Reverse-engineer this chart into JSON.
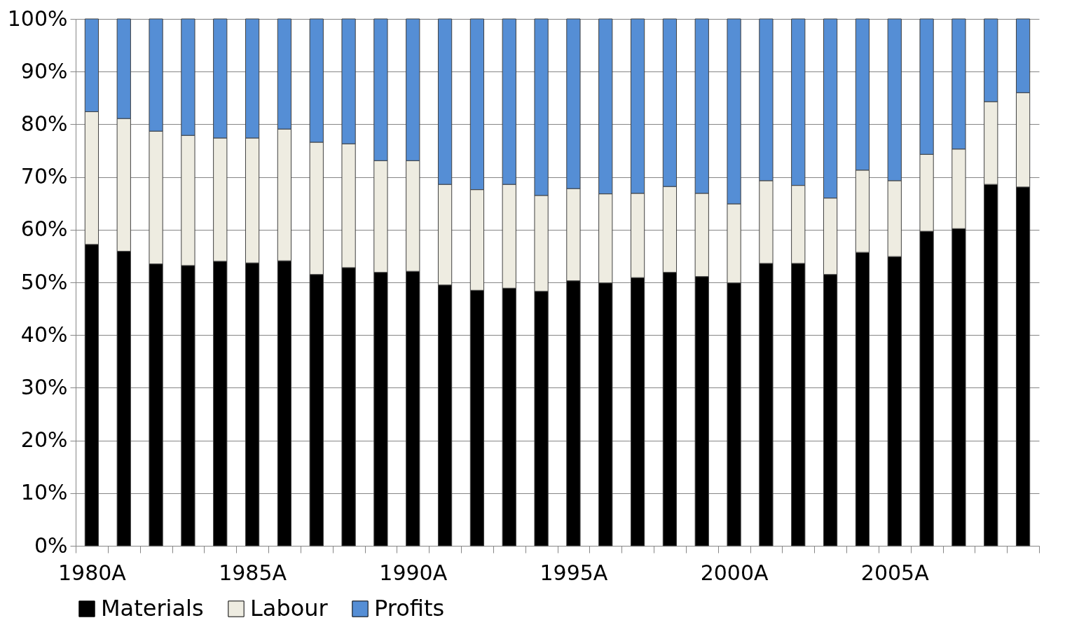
{
  "chart_data": {
    "type": "bar",
    "stacked": true,
    "categories": [
      "1980A",
      null,
      null,
      null,
      null,
      "1985A",
      null,
      null,
      null,
      null,
      "1990A",
      null,
      null,
      null,
      null,
      "1995A",
      null,
      null,
      null,
      null,
      "2000A",
      null,
      null,
      null,
      null,
      "2005A",
      null,
      null,
      null,
      null
    ],
    "series": [
      {
        "name": "Materials",
        "color": "#000000",
        "values": [
          57.2,
          55.9,
          53.5,
          53.2,
          54.0,
          53.7,
          54.1,
          51.5,
          52.8,
          51.9,
          52.1,
          49.5,
          48.5,
          48.9,
          48.3,
          50.3,
          49.9,
          50.9,
          51.9,
          51.1,
          49.9,
          53.6,
          53.6,
          51.5,
          55.7,
          54.9,
          59.7,
          60.2,
          68.6,
          68.1
        ]
      },
      {
        "name": "Labour",
        "color": "#eeece1",
        "values": [
          25.2,
          25.2,
          25.2,
          24.7,
          23.4,
          23.7,
          25.0,
          25.1,
          23.5,
          21.2,
          21.0,
          19.1,
          19.1,
          19.7,
          18.2,
          17.5,
          16.9,
          16.0,
          16.3,
          15.8,
          15.0,
          15.7,
          14.8,
          14.5,
          15.6,
          14.4,
          14.6,
          15.1,
          15.7,
          17.9
        ]
      },
      {
        "name": "Profits",
        "color": "#558ed5",
        "values": [
          17.6,
          18.9,
          21.3,
          22.1,
          22.6,
          22.6,
          20.9,
          23.4,
          23.7,
          26.9,
          26.9,
          31.4,
          32.4,
          31.4,
          33.5,
          32.2,
          33.2,
          33.1,
          31.8,
          33.1,
          35.1,
          30.7,
          31.6,
          34.0,
          28.7,
          30.7,
          25.7,
          24.7,
          15.7,
          14.0
        ]
      }
    ],
    "ylim": [
      0,
      100
    ],
    "yticks": [
      {
        "value": 0,
        "label": "0%"
      },
      {
        "value": 10,
        "label": "10%"
      },
      {
        "value": 20,
        "label": "20%"
      },
      {
        "value": 30,
        "label": "30%"
      },
      {
        "value": 40,
        "label": "40%"
      },
      {
        "value": 50,
        "label": "50%"
      },
      {
        "value": 60,
        "label": "60%"
      },
      {
        "value": 70,
        "label": "70%"
      },
      {
        "value": 80,
        "label": "80%"
      },
      {
        "value": 90,
        "label": "90%"
      },
      {
        "value": 100,
        "label": "100%"
      }
    ],
    "grid": "y",
    "legend": "bottom"
  }
}
